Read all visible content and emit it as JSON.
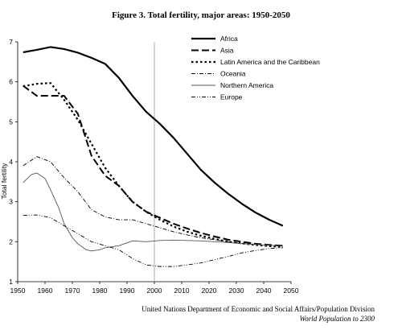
{
  "chart_data": {
    "type": "line",
    "title": "Figure 3. Total fertility, major areas: 1950-2050",
    "ylabel": "Total fertility",
    "xlabel": "",
    "xlim": [
      1950,
      2050
    ],
    "ylim": [
      1,
      7
    ],
    "x_ticks": [
      1950,
      1960,
      1970,
      1980,
      1990,
      2000,
      2010,
      2020,
      2030,
      2040,
      2050
    ],
    "y_ticks": [
      1,
      2,
      3,
      4,
      5,
      6,
      7
    ],
    "reference_line_x": 2000,
    "legend_position": "top-right",
    "grid": false,
    "series": [
      {
        "name": "Africa",
        "style": "thick-solid",
        "color": "#000000",
        "x": [
          1952,
          1957,
          1962,
          1967,
          1972,
          1977,
          1982,
          1987,
          1992,
          1997,
          2002,
          2007,
          2012,
          2017,
          2022,
          2027,
          2032,
          2037,
          2042,
          2047
        ],
        "y": [
          6.74,
          6.8,
          6.87,
          6.82,
          6.73,
          6.6,
          6.45,
          6.1,
          5.65,
          5.25,
          4.95,
          4.6,
          4.2,
          3.8,
          3.48,
          3.2,
          2.95,
          2.73,
          2.55,
          2.4
        ]
      },
      {
        "name": "Asia",
        "style": "long-dash",
        "color": "#000000",
        "x": [
          1952,
          1957,
          1962,
          1967,
          1972,
          1977,
          1982,
          1987,
          1992,
          1997,
          2002,
          2007,
          2012,
          2017,
          2022,
          2027,
          2032,
          2037,
          2042,
          2047
        ],
        "y": [
          5.9,
          5.65,
          5.65,
          5.65,
          5.2,
          4.15,
          3.65,
          3.4,
          3.0,
          2.75,
          2.6,
          2.45,
          2.33,
          2.22,
          2.13,
          2.05,
          2.0,
          1.95,
          1.92,
          1.9
        ]
      },
      {
        "name": "Latin America and the Caribbean",
        "style": "dotted-thick",
        "color": "#000000",
        "x": [
          1952,
          1957,
          1962,
          1967,
          1972,
          1977,
          1982,
          1987,
          1992,
          1997,
          2002,
          2007,
          2012,
          2017,
          2022,
          2027,
          2032,
          2037,
          2042,
          2047
        ],
        "y": [
          5.89,
          5.95,
          5.97,
          5.55,
          5.05,
          4.45,
          3.85,
          3.4,
          3.0,
          2.75,
          2.55,
          2.38,
          2.25,
          2.15,
          2.07,
          2.0,
          1.96,
          1.92,
          1.89,
          1.87
        ]
      },
      {
        "name": "Oceania",
        "style": "dash-dot",
        "color": "#000000",
        "x": [
          1952,
          1957,
          1962,
          1967,
          1972,
          1977,
          1982,
          1987,
          1992,
          1997,
          2002,
          2007,
          2012,
          2017,
          2022,
          2027,
          2032,
          2037,
          2042,
          2047
        ],
        "y": [
          3.9,
          4.13,
          4.0,
          3.6,
          3.25,
          2.8,
          2.62,
          2.55,
          2.55,
          2.45,
          2.35,
          2.25,
          2.17,
          2.1,
          2.05,
          2.0,
          1.96,
          1.93,
          1.91,
          1.9
        ]
      },
      {
        "name": "Northern America",
        "style": "thin-solid",
        "color": "#555555",
        "x": [
          1952,
          1955,
          1957,
          1960,
          1962,
          1965,
          1967,
          1970,
          1972,
          1975,
          1977,
          1980,
          1982,
          1985,
          1987,
          1992,
          1997,
          2002,
          2007,
          2012,
          2017,
          2022,
          2027,
          2032,
          2037,
          2042,
          2047
        ],
        "y": [
          3.48,
          3.68,
          3.72,
          3.58,
          3.3,
          2.85,
          2.45,
          2.1,
          1.95,
          1.8,
          1.77,
          1.8,
          1.85,
          1.88,
          1.9,
          2.02,
          2.0,
          2.03,
          2.04,
          2.03,
          2.02,
          2.0,
          1.98,
          1.95,
          1.93,
          1.91,
          1.9
        ]
      },
      {
        "name": "Europe",
        "style": "dash-dot-dot",
        "color": "#000000",
        "x": [
          1952,
          1957,
          1962,
          1967,
          1972,
          1977,
          1982,
          1987,
          1992,
          1997,
          2002,
          2007,
          2012,
          2017,
          2022,
          2027,
          2032,
          2037,
          2042,
          2047
        ],
        "y": [
          2.66,
          2.67,
          2.6,
          2.4,
          2.2,
          2.0,
          1.9,
          1.8,
          1.58,
          1.42,
          1.38,
          1.38,
          1.42,
          1.47,
          1.55,
          1.63,
          1.72,
          1.78,
          1.83,
          1.85
        ]
      }
    ]
  },
  "source": {
    "line1": "United Nations Department of Economic and Social Affairs/Population Division",
    "line2": "World Population to 2300"
  }
}
